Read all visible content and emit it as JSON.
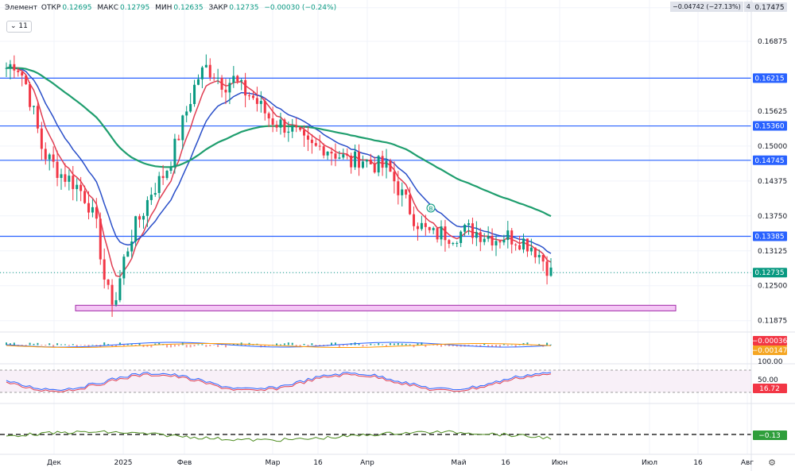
{
  "legend": {
    "name": "Элемент",
    "o_label": "ОТКР",
    "o": "0.12695",
    "h_label": "МАКС",
    "h": "0.12795",
    "l_label": "МИН",
    "l": "0.12635",
    "c_label": "ЗАКР",
    "c": "0.12735",
    "change": "−0.00030 (−0.24%)",
    "indicator_count": "11"
  },
  "top_info": {
    "delta": "−0.04742 (−27.13%)",
    "bars": "4"
  },
  "colors": {
    "up": "#089981",
    "down": "#f23645",
    "ema_fast": "#e03e52",
    "ema_mid": "#2a4fc9",
    "ema_slow": "#1f9e6e",
    "hline": "#2962ff",
    "zone_fill": "#f4c7f5",
    "zone_stroke": "#a12ba8"
  },
  "chart_data": [
    {
      "type": "candlestick",
      "title": "",
      "y_axis_ticks": [
        "0.17475",
        "0.16875",
        "0.16215",
        "0.15625",
        "0.15360",
        "0.15000",
        "0.14745",
        "0.14375",
        "0.13750",
        "0.13385",
        "0.13125",
        "0.12735",
        "0.12500",
        "0.11875"
      ],
      "ylim": [
        0.117,
        0.175
      ],
      "x_axis_labels": [
        "Дек",
        "2025",
        "Фев",
        "Мар",
        "16",
        "Апр",
        "Май",
        "16",
        "Июн",
        "Июл",
        "16",
        "Авг"
      ],
      "horizontal_levels": [
        0.16215,
        0.1536,
        0.14745,
        0.13385
      ],
      "support_zone": [
        0.1205,
        0.1215
      ],
      "last_price": 0.12735,
      "markers": [
        "B"
      ],
      "series": [
        {
          "name": "",
          "values_by_time": [
            0.164,
            0.165,
            0.162,
            0.156,
            0.149,
            0.147,
            0.145,
            0.144,
            0.1425,
            0.14,
            0.135,
            0.124,
            0.122,
            0.13,
            0.135,
            0.138,
            0.142,
            0.144,
            0.147,
            0.152,
            0.157,
            0.162,
            0.164,
            0.163,
            0.161,
            0.162,
            0.16,
            0.159,
            0.157,
            0.155,
            0.154,
            0.1535,
            0.152,
            0.15,
            0.1495,
            0.15,
            0.149,
            0.148,
            0.147,
            0.148,
            0.147,
            0.1465,
            0.146,
            0.143,
            0.14,
            0.137,
            0.135,
            0.134,
            0.1345,
            0.134,
            0.1345,
            0.135,
            0.1345,
            0.134,
            0.1335,
            0.134,
            0.1335,
            0.133,
            0.132,
            0.13,
            0.12735
          ]
        }
      ]
    },
    {
      "type": "line",
      "title": "",
      "series": [
        {
          "name": "",
          "last_value": "−0.00036"
        },
        {
          "name": "",
          "last_value": "−0.00147"
        }
      ]
    },
    {
      "type": "line",
      "title": "",
      "y_axis_ticks": [
        "100.00",
        "50.00"
      ],
      "ylim": [
        0,
        100
      ],
      "series": [
        {
          "name": "",
          "last_value": "16.72"
        }
      ]
    },
    {
      "type": "line",
      "title": "",
      "series": [
        {
          "name": "",
          "last_value": "−0.13"
        }
      ]
    }
  ],
  "price_badges": [
    {
      "label": "0.17475",
      "kind": "plain"
    },
    {
      "label": "0.16215",
      "kind": "level"
    },
    {
      "label": "0.15360",
      "kind": "level"
    },
    {
      "label": "0.14745",
      "kind": "level"
    },
    {
      "label": "0.13385",
      "kind": "level"
    },
    {
      "label": "0.12735",
      "kind": "last"
    }
  ],
  "indicator_badges": [
    {
      "label": "−0.00036",
      "color": "#f23645"
    },
    {
      "label": "−0.00147",
      "color": "#f5a623"
    },
    {
      "label": "16.72",
      "color": "#f23645"
    },
    {
      "label": "−0.13",
      "color": "#2e9e3b"
    }
  ]
}
